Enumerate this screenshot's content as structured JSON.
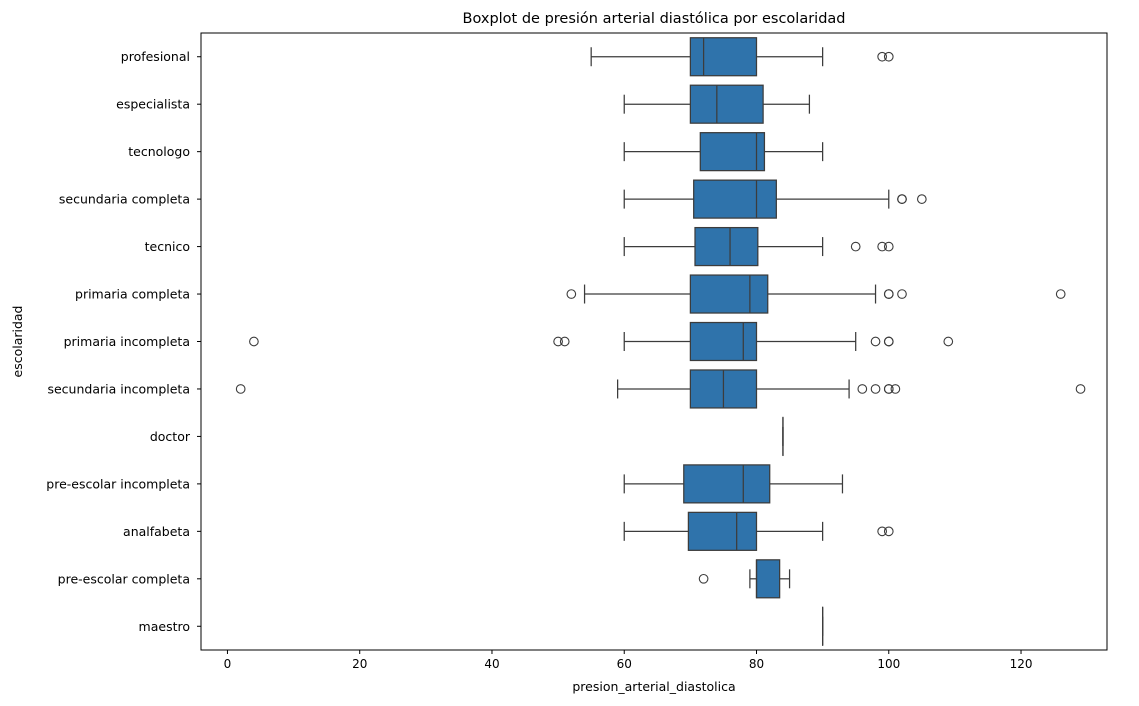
{
  "chart_data": {
    "type": "boxplot",
    "orientation": "horizontal",
    "title": "Boxplot de presión arterial diastólica por escolaridad",
    "xlabel": "presion_arterial_diastolica",
    "ylabel": "escolaridad",
    "xlim": [
      -4,
      133
    ],
    "xticks": [
      0,
      20,
      40,
      60,
      80,
      100,
      120
    ],
    "grid": false,
    "legend": "none",
    "colors": {
      "box_fill": "#2f73ab",
      "line": "#3c3c3c"
    },
    "categories": [
      "profesional",
      "especialista",
      "tecnologo",
      "secundaria completa",
      "tecnico",
      "primaria completa",
      "primaria incompleta",
      "secundaria incompleta",
      "doctor",
      "pre-escolar incompleta",
      "analfabeta",
      "pre-escolar completa",
      "maestro"
    ],
    "boxes": [
      {
        "category": "profesional",
        "whisker_low": 55,
        "q1": 70,
        "median": 72,
        "q3": 80,
        "whisker_high": 90,
        "outliers": [
          99,
          100
        ]
      },
      {
        "category": "especialista",
        "whisker_low": 60,
        "q1": 70,
        "median": 74,
        "q3": 81,
        "whisker_high": 88,
        "outliers": []
      },
      {
        "category": "tecnologo",
        "whisker_low": 60,
        "q1": 71.5,
        "median": 80,
        "q3": 81.2,
        "whisker_high": 90,
        "outliers": []
      },
      {
        "category": "secundaria completa",
        "whisker_low": 60,
        "q1": 70.5,
        "median": 80,
        "q3": 83,
        "whisker_high": 100,
        "outliers": [
          102,
          102,
          105
        ]
      },
      {
        "category": "tecnico",
        "whisker_low": 60,
        "q1": 70.7,
        "median": 76,
        "q3": 80.2,
        "whisker_high": 90,
        "outliers": [
          95,
          99,
          100
        ]
      },
      {
        "category": "primaria completa",
        "whisker_low": 54,
        "q1": 70,
        "median": 79,
        "q3": 81.7,
        "whisker_high": 98,
        "outliers": [
          52,
          100,
          100,
          102,
          126
        ]
      },
      {
        "category": "primaria incompleta",
        "whisker_low": 60,
        "q1": 70,
        "median": 78,
        "q3": 80,
        "whisker_high": 95,
        "outliers": [
          4,
          50,
          51,
          98,
          100,
          100,
          109
        ]
      },
      {
        "category": "secundaria incompleta",
        "whisker_low": 59,
        "q1": 70,
        "median": 75,
        "q3": 80,
        "whisker_high": 94,
        "outliers": [
          2,
          96,
          98,
          100,
          100,
          101,
          129
        ]
      },
      {
        "category": "doctor",
        "whisker_low": 84,
        "q1": 84,
        "median": 84,
        "q3": 84,
        "whisker_high": 84,
        "outliers": []
      },
      {
        "category": "pre-escolar incompleta",
        "whisker_low": 60,
        "q1": 69,
        "median": 78,
        "q3": 82,
        "whisker_high": 93,
        "outliers": []
      },
      {
        "category": "analfabeta",
        "whisker_low": 60,
        "q1": 69.7,
        "median": 77,
        "q3": 80,
        "whisker_high": 90,
        "outliers": [
          99,
          100
        ]
      },
      {
        "category": "pre-escolar completa",
        "whisker_low": 79,
        "q1": 80,
        "median": 80,
        "q3": 83.5,
        "whisker_high": 85,
        "outliers": [
          72
        ]
      },
      {
        "category": "maestro",
        "whisker_low": 90,
        "q1": 90,
        "median": 90,
        "q3": 90,
        "whisker_high": 90,
        "outliers": []
      }
    ]
  }
}
